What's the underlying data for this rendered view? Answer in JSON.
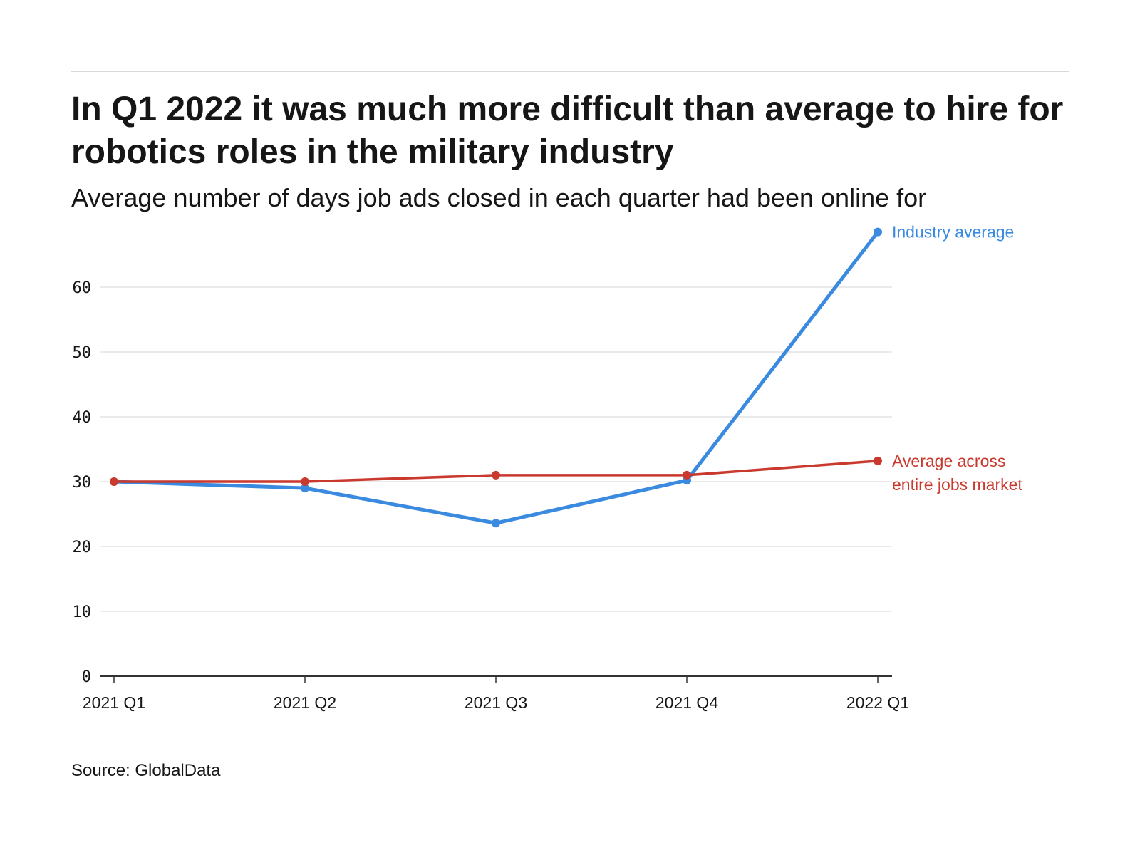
{
  "header": {
    "title": "In Q1 2022 it was much more difficult than average to hire for robotics roles in the military industry",
    "subtitle": "Average number of days job ads closed in each quarter had been online for"
  },
  "footer": {
    "source": "Source: GlobalData"
  },
  "chart_data": {
    "type": "line",
    "title": "In Q1 2022 it was much more difficult than average to hire for robotics roles in the military industry",
    "subtitle": "Average number of days job ads closed in each quarter had been online for",
    "xlabel": "",
    "ylabel": "",
    "categories": [
      "2021 Q1",
      "2021 Q2",
      "2021 Q3",
      "2021 Q4",
      "2022 Q1"
    ],
    "yticks": [
      0,
      10,
      20,
      30,
      40,
      50,
      60
    ],
    "ylim": [
      0,
      70
    ],
    "grid": true,
    "series": [
      {
        "name": "Industry average",
        "label_lines": [
          "Industry average"
        ],
        "color": "#3a8ae0",
        "values": [
          30.0,
          29.0,
          23.6,
          30.2,
          68.5
        ]
      },
      {
        "name": "Average across entire jobs market",
        "label_lines": [
          "Average across",
          "entire jobs market"
        ],
        "color": "#c9392e",
        "values": [
          30.0,
          30.0,
          31.0,
          31.0,
          33.2
        ]
      }
    ],
    "legend": "direct labels at right end of lines",
    "source": "Source: GlobalData"
  }
}
